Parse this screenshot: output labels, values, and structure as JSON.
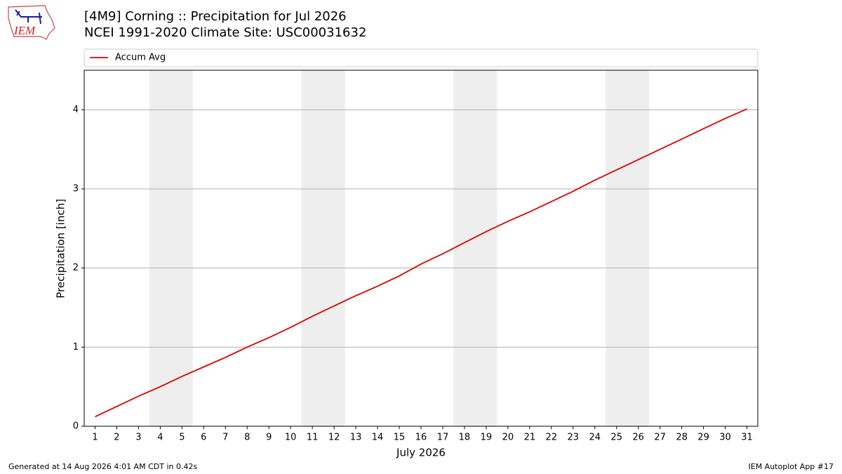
{
  "chart_data": {
    "type": "line",
    "title": "[4M9] Corning :: Precipitation for Jul 2026",
    "subtitle": "NCEI 1991-2020 Climate Site: USC00031632",
    "xlabel": "July 2026",
    "ylabel": "Precipitation [inch]",
    "x": [
      1,
      2,
      3,
      4,
      5,
      6,
      7,
      8,
      9,
      10,
      11,
      12,
      13,
      14,
      15,
      16,
      17,
      18,
      19,
      20,
      21,
      22,
      23,
      24,
      25,
      26,
      27,
      28,
      29,
      30,
      31
    ],
    "series": [
      {
        "name": "Accum Avg",
        "color": "#e00000",
        "values": [
          0.12,
          0.25,
          0.38,
          0.5,
          0.63,
          0.75,
          0.87,
          1.0,
          1.12,
          1.25,
          1.39,
          1.52,
          1.65,
          1.77,
          1.9,
          2.05,
          2.18,
          2.32,
          2.46,
          2.59,
          2.71,
          2.84,
          2.97,
          3.11,
          3.24,
          3.37,
          3.5,
          3.63,
          3.76,
          3.89,
          4.01
        ]
      }
    ],
    "xlim": [
      0.5,
      31.5
    ],
    "xticks": [
      1,
      2,
      3,
      4,
      5,
      6,
      7,
      8,
      9,
      10,
      11,
      12,
      13,
      14,
      15,
      16,
      17,
      18,
      19,
      20,
      21,
      22,
      23,
      24,
      25,
      26,
      27,
      28,
      29,
      30,
      31
    ],
    "ylim": [
      0,
      4.5
    ],
    "yticks": [
      0,
      1,
      2,
      3,
      4
    ],
    "grid": true,
    "legend": "top",
    "shaded_spans": [
      [
        3.5,
        5.5
      ],
      [
        10.5,
        12.5
      ],
      [
        17.5,
        19.5
      ],
      [
        24.5,
        26.5
      ]
    ],
    "span_color": "#eeeeee"
  },
  "logo_text": "IEM",
  "footer_left": "Generated at 14 Aug 2026 4:01 AM CDT in 0.42s",
  "footer_right": "IEM Autoplot App #17"
}
